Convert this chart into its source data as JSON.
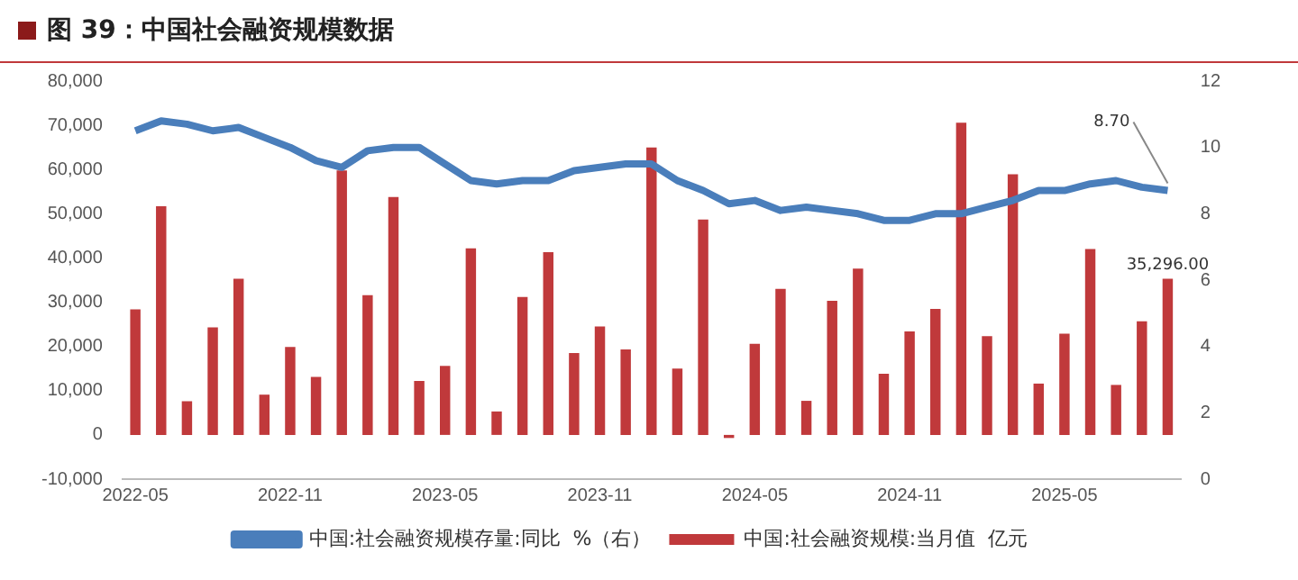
{
  "chart_data": {
    "type": "bar",
    "title": "图 39：中国社会融资规模数据",
    "categories": [
      "2022-05",
      null,
      null,
      null,
      null,
      null,
      "2022-11",
      null,
      null,
      null,
      null,
      null,
      "2023-05",
      null,
      null,
      null,
      null,
      null,
      "2023-11",
      null,
      null,
      null,
      null,
      null,
      "2024-05",
      null,
      null,
      null,
      null,
      null,
      "2024-11",
      null,
      null,
      null,
      null,
      null,
      "2025-05",
      null,
      null,
      null,
      null
    ],
    "series": [
      {
        "name": "中国:社会融资规模:当月值  亿元",
        "color": "#c0393b",
        "values": [
          28400,
          51700,
          7600,
          24300,
          35300,
          9100,
          19900,
          13100,
          59800,
          31600,
          53800,
          12200,
          15600,
          42200,
          5300,
          31200,
          41300,
          18500,
          24500,
          19300,
          65000,
          15000,
          48700,
          -700,
          20600,
          33000,
          7700,
          30300,
          37600,
          13800,
          23400,
          28500,
          70600,
          22300,
          58900,
          11600,
          22900,
          42000,
          11300,
          25700,
          35296
        ],
        "value_labels": [
          null,
          null,
          null,
          null,
          null,
          null,
          null,
          null,
          null,
          null,
          null,
          null,
          null,
          null,
          null,
          null,
          null,
          null,
          null,
          null,
          null,
          null,
          null,
          null,
          null,
          null,
          null,
          null,
          null,
          null,
          null,
          null,
          null,
          null,
          null,
          null,
          null,
          null,
          null,
          null,
          "35,296.00"
        ]
      },
      {
        "name": "中国:社会融资规模存量:同比  %（右）",
        "type": "line",
        "axis": "y2",
        "color": "#4a7ebb",
        "values": [
          10.5,
          10.8,
          10.7,
          10.5,
          10.6,
          10.3,
          10.0,
          9.6,
          9.4,
          9.9,
          10.0,
          10.0,
          9.5,
          9.0,
          8.9,
          9.0,
          9.0,
          9.3,
          9.4,
          9.5,
          9.5,
          9.0,
          8.7,
          8.3,
          8.4,
          8.1,
          8.2,
          8.1,
          8.0,
          7.8,
          7.8,
          8.0,
          8.0,
          8.2,
          8.4,
          8.7,
          8.7,
          8.9,
          9.0,
          8.8,
          8.7
        ],
        "value_labels": [
          null,
          null,
          null,
          null,
          null,
          null,
          null,
          null,
          null,
          null,
          null,
          null,
          null,
          null,
          null,
          null,
          null,
          null,
          null,
          null,
          null,
          null,
          null,
          null,
          null,
          null,
          null,
          null,
          null,
          null,
          null,
          null,
          null,
          null,
          null,
          null,
          null,
          null,
          null,
          null,
          "8.70"
        ]
      }
    ],
    "ylim": [
      -10000,
      80000
    ],
    "yticks": [
      {
        "value": -10000,
        "label": "-10,000"
      },
      0,
      {
        "value": 10000,
        "label": "10,000"
      },
      {
        "value": 20000,
        "label": "20,000"
      },
      {
        "value": 30000,
        "label": "30,000"
      },
      {
        "value": 40000,
        "label": "40,000"
      },
      {
        "value": 50000,
        "label": "50,000"
      },
      {
        "value": 60000,
        "label": "60,000"
      },
      {
        "value": 70000,
        "label": "70,000"
      },
      {
        "value": 80000,
        "label": "80,000"
      }
    ],
    "y2lim": [
      0,
      12
    ],
    "y2ticks": [
      0,
      2,
      4,
      6,
      8,
      10,
      12
    ],
    "legend": "bottom",
    "grid": false,
    "marker": "none"
  }
}
